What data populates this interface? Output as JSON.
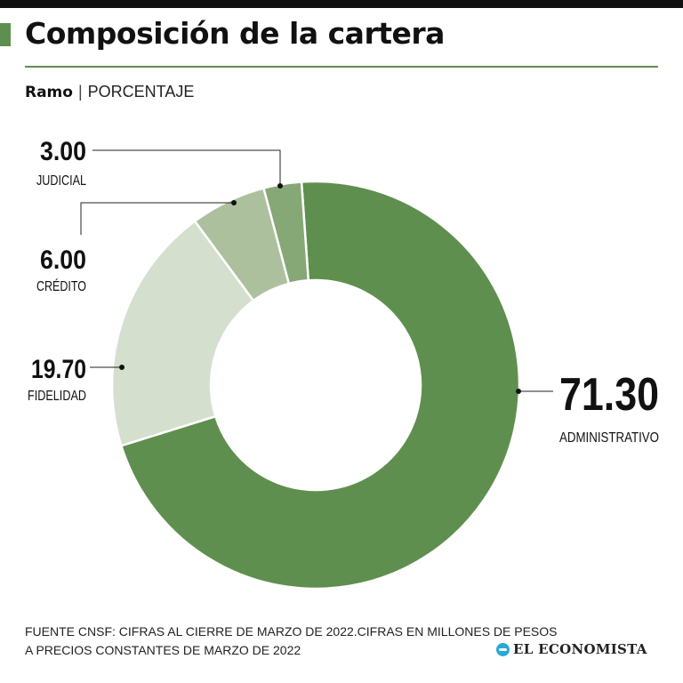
{
  "header": {
    "title": "Composición de la cartera",
    "subtitle_bold": "Ramo",
    "subtitle_sep": "|",
    "subtitle_rest": "PORCENTAJE"
  },
  "chart_data": {
    "type": "pie",
    "variant": "donut",
    "title": "Composición de la cartera",
    "unit": "PORCENTAJE",
    "categories": [
      "ADMINISTRATIVO",
      "FIDELIDAD",
      "CRÉDITO",
      "JUDICIAL"
    ],
    "values": [
      71.3,
      19.7,
      6.0,
      3.0
    ],
    "value_labels": [
      "71.30",
      "19.70",
      "6.00",
      "3.00"
    ],
    "colors": [
      "#5f8f4e",
      "#d5dfcd",
      "#adc09e",
      "#86a877"
    ]
  },
  "footer": {
    "source_line1": "FUENTE CNSF: CIFRAS AL CIERRE DE  MARZO DE 2022.CIFRAS EN MILLONES DE PESOS",
    "source_line2": "A PRECIOS CONSTANTES DE MARZO DE 2022",
    "brand": "EL ECONOMISTA",
    "brand_icon": "el-economista-logo-icon"
  },
  "colors": {
    "accent": "#5f8f4e",
    "top_bar": "#111111"
  }
}
